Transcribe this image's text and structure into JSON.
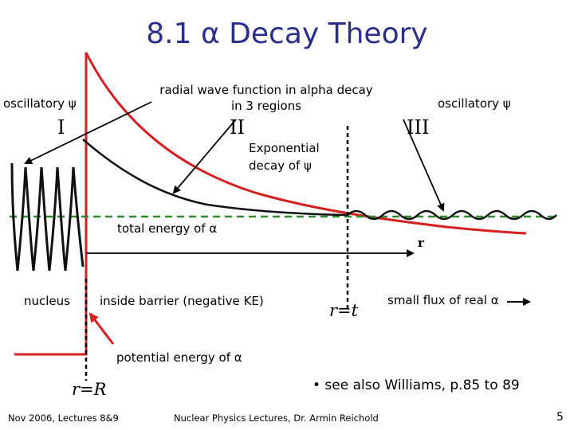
{
  "slide": {
    "title": "8.1 α Decay Theory",
    "labels": {
      "oscillatory_left": "oscillatory ψ",
      "oscillatory_right": "oscillatory ψ",
      "radial_line1": "radial wave function in alpha decay",
      "radial_line2": "in 3 regions",
      "region_1": "I",
      "region_2": "II",
      "region_3": "III",
      "exp_line1": "Exponential",
      "exp_line2": "decay of ψ",
      "total_energy": "total energy of α",
      "r_axis": "r",
      "nucleus": "nucleus",
      "inside_barrier": "inside barrier (negative KE)",
      "r_t": "r=t",
      "small_flux": "small flux of real α",
      "potential_energy": "potential energy of α",
      "r_R": "r=R",
      "see_also": "• see also Williams, p.85 to 89"
    },
    "footer": {
      "left": "Nov 2006, Lectures 8&9",
      "center": "Nuclear Physics Lectures, Dr. Armin Reichold",
      "page": "5"
    },
    "colors": {
      "title": "#2a2f8c",
      "potential": "#d42020",
      "energy_line": "#2e8b2e",
      "wave": "#111111"
    }
  }
}
